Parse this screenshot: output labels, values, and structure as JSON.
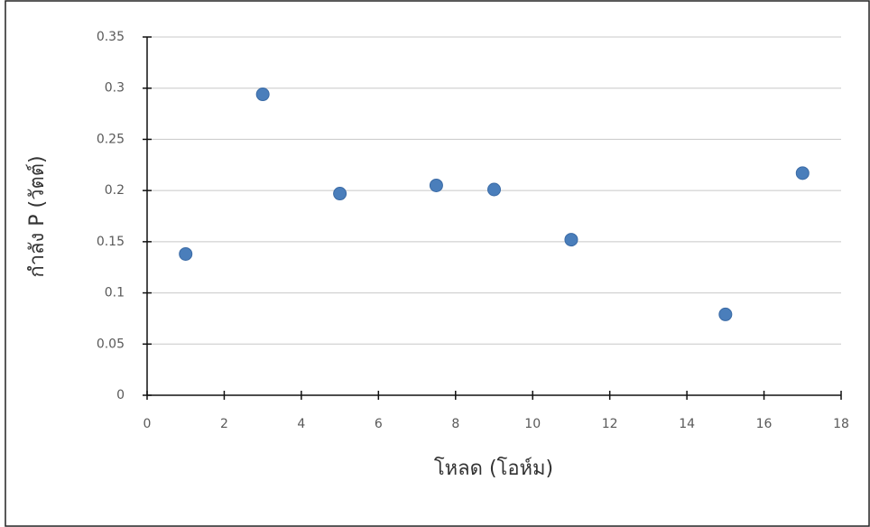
{
  "chart_data": {
    "type": "scatter",
    "x_label": "โหลด (โอห์ม)",
    "y_label": "กำลัง P (วัตต์)",
    "x": [
      1,
      3,
      5,
      7.5,
      9,
      11,
      15,
      17
    ],
    "series": [
      {
        "color": "#4a7ebb",
        "values": [
          0.138,
          0.294,
          0.197,
          0.205,
          0.201,
          0.152,
          0.079,
          0.217
        ]
      }
    ],
    "xlim": [
      0,
      18
    ],
    "xticks": [
      0,
      2,
      4,
      6,
      8,
      10,
      12,
      14,
      16,
      18
    ],
    "ylim": [
      0,
      0.35
    ],
    "yticks": [
      0,
      0.05,
      0.1,
      0.15,
      0.2,
      0.25,
      0.3,
      0.35
    ],
    "grid": true
  }
}
